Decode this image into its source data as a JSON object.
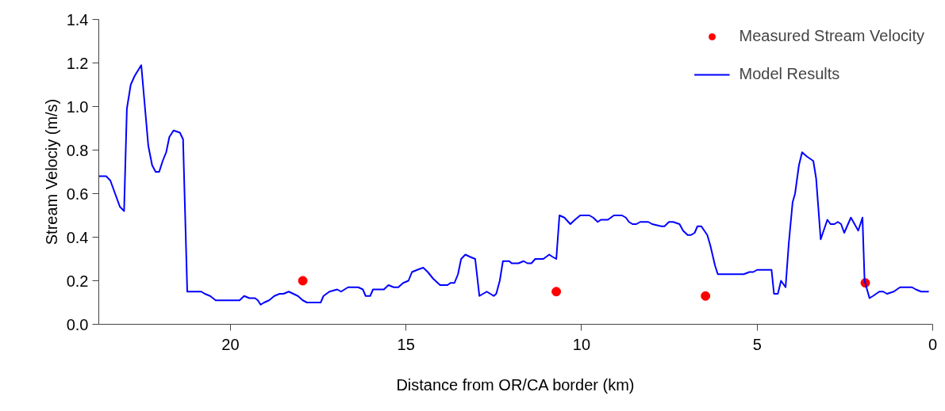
{
  "chart_data": {
    "type": "line",
    "xlabel": "Distance from OR/CA border (km)",
    "ylabel": "Stream Velociy (m/s)",
    "xlim": [
      23.75,
      0
    ],
    "xticks": [
      20,
      15,
      10,
      5,
      0
    ],
    "ylim": [
      0,
      1.4
    ],
    "yticks": [
      {
        "value": 0,
        "label": "0.0"
      },
      {
        "value": 0.2,
        "label": "0.2"
      },
      {
        "value": 0.4,
        "label": "0.4"
      },
      {
        "value": 0.6,
        "label": "0.6"
      },
      {
        "value": 0.8,
        "label": "0.8"
      },
      {
        "value": 1.0,
        "label": "1.0"
      },
      {
        "value": 1.2,
        "label": "1.2"
      },
      {
        "value": 1.4,
        "label": "1.4"
      }
    ],
    "grid": false,
    "legend": "top right",
    "series": [
      {
        "name": "Measured Stream Velocity",
        "type": "scatter",
        "marker": "circle",
        "color": "#ff0000",
        "x": [
          17.94,
          10.72,
          6.47,
          1.92
        ],
        "values": [
          0.2,
          0.15,
          0.13,
          0.19
        ]
      },
      {
        "name": "Model Results",
        "color": "#0000ff",
        "line_style": "solid",
        "x": [
          23.74,
          23.54,
          23.42,
          23.24,
          23.15,
          23.03,
          22.95,
          22.84,
          22.73,
          22.54,
          22.34,
          22.23,
          22.13,
          22.03,
          21.93,
          21.83,
          21.74,
          21.62,
          21.44,
          21.35,
          21.23,
          20.83,
          20.73,
          20.58,
          20.42,
          20.16,
          20.02,
          19.74,
          19.61,
          19.46,
          19.3,
          19.22,
          19.14,
          19.04,
          18.9,
          18.75,
          18.6,
          18.49,
          18.34,
          18.08,
          17.94,
          17.82,
          17.43,
          17.35,
          17.18,
          16.96,
          16.85,
          16.65,
          16.36,
          16.23,
          16.15,
          16.02,
          15.94,
          15.63,
          15.5,
          15.35,
          15.22,
          15.08,
          14.93,
          14.83,
          14.68,
          14.51,
          14.38,
          14.23,
          14.03,
          13.82,
          13.73,
          13.62,
          13.52,
          13.43,
          13.31,
          13.18,
          13.03,
          12.91,
          12.7,
          12.5,
          12.43,
          12.33,
          12.24,
          12.06,
          11.99,
          11.8,
          11.65,
          11.54,
          11.43,
          11.32,
          11.22,
          11.09,
          10.92,
          10.83,
          10.72,
          10.63,
          10.49,
          10.32,
          10.19,
          10.04,
          9.78,
          9.67,
          9.54,
          9.45,
          9.25,
          9.08,
          8.85,
          8.74,
          8.65,
          8.55,
          8.44,
          8.33,
          8.1,
          7.99,
          7.73,
          7.64,
          7.51,
          7.39,
          7.21,
          7.11,
          6.98,
          6.88,
          6.78,
          6.7,
          6.59,
          6.42,
          6.33,
          6.2,
          6.12,
          5.53,
          5.38,
          5.22,
          5.11,
          5.0,
          4.59,
          4.52,
          4.41,
          4.32,
          4.19,
          4.1,
          3.99,
          3.92,
          3.81,
          3.72,
          3.58,
          3.4,
          3.32,
          3.19,
          3.0,
          2.91,
          2.8,
          2.7,
          2.61,
          2.52,
          2.33,
          2.12,
          2.0,
          1.94,
          1.8,
          1.7,
          1.52,
          1.41,
          1.3,
          1.11,
          0.93,
          0.78,
          0.59,
          0.48,
          0.33,
          0.11
        ],
        "values": [
          0.68,
          0.68,
          0.66,
          0.58,
          0.54,
          0.52,
          0.99,
          1.1,
          1.14,
          1.19,
          0.82,
          0.73,
          0.7,
          0.7,
          0.75,
          0.79,
          0.86,
          0.89,
          0.88,
          0.85,
          0.15,
          0.15,
          0.14,
          0.13,
          0.11,
          0.11,
          0.11,
          0.11,
          0.13,
          0.12,
          0.12,
          0.11,
          0.09,
          0.1,
          0.11,
          0.13,
          0.14,
          0.14,
          0.15,
          0.13,
          0.11,
          0.1,
          0.1,
          0.13,
          0.15,
          0.16,
          0.15,
          0.17,
          0.17,
          0.16,
          0.13,
          0.13,
          0.16,
          0.16,
          0.18,
          0.17,
          0.17,
          0.19,
          0.2,
          0.24,
          0.25,
          0.26,
          0.24,
          0.21,
          0.18,
          0.18,
          0.19,
          0.19,
          0.23,
          0.3,
          0.32,
          0.31,
          0.3,
          0.13,
          0.15,
          0.13,
          0.14,
          0.2,
          0.29,
          0.29,
          0.28,
          0.28,
          0.29,
          0.28,
          0.28,
          0.3,
          0.3,
          0.3,
          0.32,
          0.31,
          0.3,
          0.5,
          0.49,
          0.46,
          0.48,
          0.5,
          0.5,
          0.49,
          0.47,
          0.48,
          0.48,
          0.5,
          0.5,
          0.49,
          0.47,
          0.46,
          0.46,
          0.47,
          0.47,
          0.46,
          0.45,
          0.45,
          0.47,
          0.47,
          0.46,
          0.43,
          0.41,
          0.41,
          0.42,
          0.45,
          0.45,
          0.41,
          0.36,
          0.27,
          0.23,
          0.23,
          0.23,
          0.24,
          0.24,
          0.25,
          0.25,
          0.14,
          0.14,
          0.2,
          0.17,
          0.37,
          0.56,
          0.6,
          0.73,
          0.79,
          0.77,
          0.75,
          0.67,
          0.39,
          0.48,
          0.46,
          0.46,
          0.47,
          0.46,
          0.42,
          0.49,
          0.43,
          0.49,
          0.2,
          0.12,
          0.13,
          0.15,
          0.15,
          0.14,
          0.15,
          0.17,
          0.17,
          0.17,
          0.16,
          0.15,
          0.15
        ]
      }
    ]
  }
}
